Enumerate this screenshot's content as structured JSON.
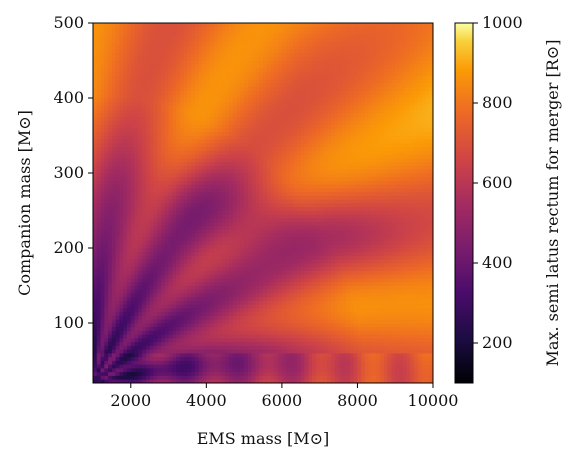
{
  "chart_data": {
    "type": "heatmap",
    "xlabel": "EMS mass [M⊙]",
    "ylabel": "Companion mass [M⊙]",
    "colorbar_label": "Max. semi latus rectum for merger [R⊙]",
    "xlim": [
      1000,
      10000
    ],
    "ylim": [
      20,
      500
    ],
    "x_ticks": [
      2000,
      4000,
      6000,
      8000,
      10000
    ],
    "y_ticks": [
      100,
      200,
      300,
      400,
      500
    ],
    "colorbar_range": [
      100,
      1000
    ],
    "colorbar_ticks": [
      200,
      400,
      600,
      800,
      1000
    ],
    "colormap": "inferno",
    "grid": false,
    "resolution": {
      "x_bins": 90,
      "y_bins": 96
    },
    "value_description": "approximate field: values low (~200-350) near low EMS mass / low companion mass, rising to ~650-900 at high companion mass and high EMS mass, with radial band structure fanning out from origin",
    "anchor_samples": [
      {
        "x": 1000,
        "y": 30,
        "value": 230
      },
      {
        "x": 1500,
        "y": 80,
        "value": 280
      },
      {
        "x": 2000,
        "y": 150,
        "value": 420
      },
      {
        "x": 3000,
        "y": 250,
        "value": 600
      },
      {
        "x": 5000,
        "y": 450,
        "value": 740
      },
      {
        "x": 6000,
        "y": 250,
        "value": 520
      },
      {
        "x": 8000,
        "y": 300,
        "value": 790
      },
      {
        "x": 9500,
        "y": 480,
        "value": 900
      },
      {
        "x": 9000,
        "y": 100,
        "value": 800
      },
      {
        "x": 4000,
        "y": 60,
        "value": 640
      }
    ]
  }
}
